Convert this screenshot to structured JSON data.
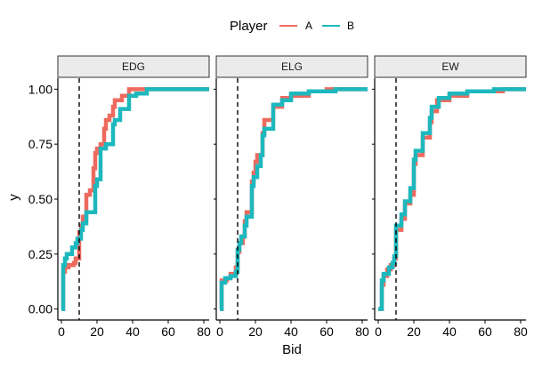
{
  "chart_data": {
    "type": "line",
    "subtype": "step-ecdf",
    "facets": [
      "EDG",
      "ELG",
      "EW"
    ],
    "xlabel": "Bid",
    "ylabel": "y",
    "xlim": [
      -2,
      83
    ],
    "ylim": [
      -0.05,
      1.05
    ],
    "x_ticks": [
      0,
      20,
      40,
      60,
      80
    ],
    "y_ticks": [
      0,
      0.25,
      0.5,
      0.75,
      1
    ],
    "x_tick_labels": [
      "0",
      "20",
      "40",
      "60",
      "80"
    ],
    "y_tick_labels": [
      "0.00",
      "0.25",
      "0.50",
      "0.75",
      "1.00"
    ],
    "vline": {
      "x": 10,
      "style": "dashed"
    },
    "grid": false,
    "legend": {
      "title": "Player",
      "position": "top",
      "entries": [
        {
          "name": "A",
          "color": "#EE6A5F"
        },
        {
          "name": "B",
          "color": "#1DB8BD"
        }
      ]
    },
    "panels": [
      {
        "facet": "EDG",
        "series": [
          {
            "name": "A",
            "color": "#EE6A5F",
            "points": [
              [
                0,
                0
              ],
              [
                1,
                0
              ],
              [
                1,
                0.17
              ],
              [
                2,
                0.17
              ],
              [
                2,
                0.19
              ],
              [
                4,
                0.19
              ],
              [
                4,
                0.2
              ],
              [
                7,
                0.2
              ],
              [
                7,
                0.21
              ],
              [
                8,
                0.21
              ],
              [
                8,
                0.23
              ],
              [
                10,
                0.23
              ],
              [
                10,
                0.35
              ],
              [
                11,
                0.35
              ],
              [
                11,
                0.38
              ],
              [
                12,
                0.38
              ],
              [
                12,
                0.42
              ],
              [
                14,
                0.42
              ],
              [
                14,
                0.52
              ],
              [
                16,
                0.52
              ],
              [
                16,
                0.54
              ],
              [
                18,
                0.54
              ],
              [
                18,
                0.64
              ],
              [
                19,
                0.64
              ],
              [
                19,
                0.71
              ],
              [
                20,
                0.71
              ],
              [
                20,
                0.73
              ],
              [
                22,
                0.73
              ],
              [
                22,
                0.75
              ],
              [
                24,
                0.75
              ],
              [
                24,
                0.82
              ],
              [
                25,
                0.82
              ],
              [
                25,
                0.86
              ],
              [
                27,
                0.86
              ],
              [
                27,
                0.88
              ],
              [
                29,
                0.88
              ],
              [
                29,
                0.92
              ],
              [
                30,
                0.92
              ],
              [
                30,
                0.95
              ],
              [
                34,
                0.95
              ],
              [
                34,
                0.97
              ],
              [
                38,
                0.97
              ],
              [
                38,
                1
              ],
              [
                83,
                1
              ]
            ]
          },
          {
            "name": "B",
            "color": "#1DB8BD",
            "points": [
              [
                0,
                0
              ],
              [
                1,
                0
              ],
              [
                1,
                0.2
              ],
              [
                2,
                0.2
              ],
              [
                2,
                0.23
              ],
              [
                3,
                0.23
              ],
              [
                3,
                0.25
              ],
              [
                6,
                0.25
              ],
              [
                6,
                0.28
              ],
              [
                8,
                0.28
              ],
              [
                8,
                0.3
              ],
              [
                9,
                0.3
              ],
              [
                9,
                0.32
              ],
              [
                11,
                0.32
              ],
              [
                11,
                0.36
              ],
              [
                12,
                0.36
              ],
              [
                12,
                0.39
              ],
              [
                14,
                0.39
              ],
              [
                14,
                0.44
              ],
              [
                19,
                0.44
              ],
              [
                19,
                0.56
              ],
              [
                20,
                0.56
              ],
              [
                20,
                0.59
              ],
              [
                22,
                0.59
              ],
              [
                22,
                0.73
              ],
              [
                25,
                0.73
              ],
              [
                25,
                0.75
              ],
              [
                29,
                0.75
              ],
              [
                29,
                0.84
              ],
              [
                30,
                0.84
              ],
              [
                30,
                0.86
              ],
              [
                33,
                0.86
              ],
              [
                33,
                0.91
              ],
              [
                38,
                0.91
              ],
              [
                38,
                0.97
              ],
              [
                42,
                0.97
              ],
              [
                42,
                0.98
              ],
              [
                48,
                0.98
              ],
              [
                48,
                1
              ],
              [
                83,
                1
              ]
            ]
          }
        ]
      },
      {
        "facet": "ELG",
        "series": [
          {
            "name": "A",
            "color": "#EE6A5F",
            "points": [
              [
                0,
                0
              ],
              [
                1,
                0
              ],
              [
                1,
                0.13
              ],
              [
                4,
                0.13
              ],
              [
                4,
                0.14
              ],
              [
                6,
                0.14
              ],
              [
                6,
                0.16
              ],
              [
                9,
                0.16
              ],
              [
                9,
                0.19
              ],
              [
                10,
                0.19
              ],
              [
                10,
                0.26
              ],
              [
                11,
                0.26
              ],
              [
                11,
                0.3
              ],
              [
                13,
                0.3
              ],
              [
                13,
                0.33
              ],
              [
                14,
                0.33
              ],
              [
                14,
                0.4
              ],
              [
                15,
                0.4
              ],
              [
                15,
                0.44
              ],
              [
                18,
                0.44
              ],
              [
                18,
                0.58
              ],
              [
                19,
                0.58
              ],
              [
                19,
                0.62
              ],
              [
                20,
                0.62
              ],
              [
                20,
                0.67
              ],
              [
                21,
                0.67
              ],
              [
                21,
                0.7
              ],
              [
                24,
                0.7
              ],
              [
                24,
                0.8
              ],
              [
                25,
                0.8
              ],
              [
                25,
                0.86
              ],
              [
                30,
                0.86
              ],
              [
                30,
                0.92
              ],
              [
                35,
                0.92
              ],
              [
                35,
                0.96
              ],
              [
                40,
                0.96
              ],
              [
                40,
                0.97
              ],
              [
                50,
                0.97
              ],
              [
                50,
                0.99
              ],
              [
                60,
                0.99
              ],
              [
                60,
                1
              ],
              [
                83,
                1
              ]
            ]
          },
          {
            "name": "B",
            "color": "#1DB8BD",
            "points": [
              [
                0,
                0
              ],
              [
                1,
                0
              ],
              [
                1,
                0.12
              ],
              [
                3,
                0.12
              ],
              [
                3,
                0.14
              ],
              [
                6,
                0.14
              ],
              [
                6,
                0.15
              ],
              [
                9,
                0.15
              ],
              [
                9,
                0.17
              ],
              [
                10,
                0.17
              ],
              [
                10,
                0.27
              ],
              [
                11,
                0.27
              ],
              [
                11,
                0.3
              ],
              [
                12,
                0.3
              ],
              [
                12,
                0.33
              ],
              [
                14,
                0.33
              ],
              [
                14,
                0.38
              ],
              [
                15,
                0.38
              ],
              [
                15,
                0.42
              ],
              [
                18,
                0.42
              ],
              [
                18,
                0.56
              ],
              [
                19,
                0.56
              ],
              [
                19,
                0.6
              ],
              [
                21,
                0.6
              ],
              [
                21,
                0.65
              ],
              [
                23,
                0.65
              ],
              [
                23,
                0.7
              ],
              [
                24,
                0.7
              ],
              [
                24,
                0.79
              ],
              [
                25,
                0.79
              ],
              [
                25,
                0.82
              ],
              [
                30,
                0.82
              ],
              [
                30,
                0.93
              ],
              [
                35,
                0.93
              ],
              [
                35,
                0.95
              ],
              [
                40,
                0.95
              ],
              [
                40,
                0.98
              ],
              [
                50,
                0.98
              ],
              [
                50,
                0.99
              ],
              [
                65,
                0.99
              ],
              [
                65,
                1
              ],
              [
                83,
                1
              ]
            ]
          }
        ]
      },
      {
        "facet": "EW",
        "series": [
          {
            "name": "A",
            "color": "#EE6A5F",
            "points": [
              [
                0,
                0
              ],
              [
                2,
                0
              ],
              [
                2,
                0.11
              ],
              [
                3,
                0.11
              ],
              [
                3,
                0.15
              ],
              [
                5,
                0.15
              ],
              [
                5,
                0.18
              ],
              [
                7,
                0.18
              ],
              [
                7,
                0.2
              ],
              [
                9,
                0.2
              ],
              [
                9,
                0.23
              ],
              [
                10,
                0.23
              ],
              [
                10,
                0.36
              ],
              [
                13,
                0.36
              ],
              [
                13,
                0.41
              ],
              [
                15,
                0.41
              ],
              [
                15,
                0.48
              ],
              [
                18,
                0.48
              ],
              [
                18,
                0.52
              ],
              [
                20,
                0.52
              ],
              [
                20,
                0.66
              ],
              [
                21,
                0.66
              ],
              [
                21,
                0.7
              ],
              [
                25,
                0.7
              ],
              [
                25,
                0.78
              ],
              [
                29,
                0.78
              ],
              [
                29,
                0.85
              ],
              [
                30,
                0.85
              ],
              [
                30,
                0.9
              ],
              [
                33,
                0.9
              ],
              [
                33,
                0.95
              ],
              [
                40,
                0.95
              ],
              [
                40,
                0.97
              ],
              [
                50,
                0.97
              ],
              [
                50,
                0.99
              ],
              [
                70,
                0.99
              ],
              [
                70,
                1
              ],
              [
                83,
                1
              ]
            ]
          },
          {
            "name": "B",
            "color": "#1DB8BD",
            "points": [
              [
                0,
                0
              ],
              [
                2,
                0
              ],
              [
                2,
                0.13
              ],
              [
                3,
                0.13
              ],
              [
                3,
                0.16
              ],
              [
                6,
                0.16
              ],
              [
                6,
                0.19
              ],
              [
                8,
                0.19
              ],
              [
                8,
                0.21
              ],
              [
                9,
                0.21
              ],
              [
                9,
                0.24
              ],
              [
                10,
                0.24
              ],
              [
                10,
                0.38
              ],
              [
                13,
                0.38
              ],
              [
                13,
                0.43
              ],
              [
                15,
                0.43
              ],
              [
                15,
                0.49
              ],
              [
                18,
                0.49
              ],
              [
                18,
                0.55
              ],
              [
                20,
                0.55
              ],
              [
                20,
                0.68
              ],
              [
                21,
                0.68
              ],
              [
                21,
                0.72
              ],
              [
                25,
                0.72
              ],
              [
                25,
                0.8
              ],
              [
                29,
                0.8
              ],
              [
                29,
                0.87
              ],
              [
                30,
                0.87
              ],
              [
                30,
                0.92
              ],
              [
                34,
                0.92
              ],
              [
                34,
                0.96
              ],
              [
                40,
                0.96
              ],
              [
                40,
                0.98
              ],
              [
                50,
                0.98
              ],
              [
                50,
                0.99
              ],
              [
                65,
                0.99
              ],
              [
                65,
                1
              ],
              [
                83,
                1
              ]
            ]
          }
        ]
      }
    ]
  }
}
